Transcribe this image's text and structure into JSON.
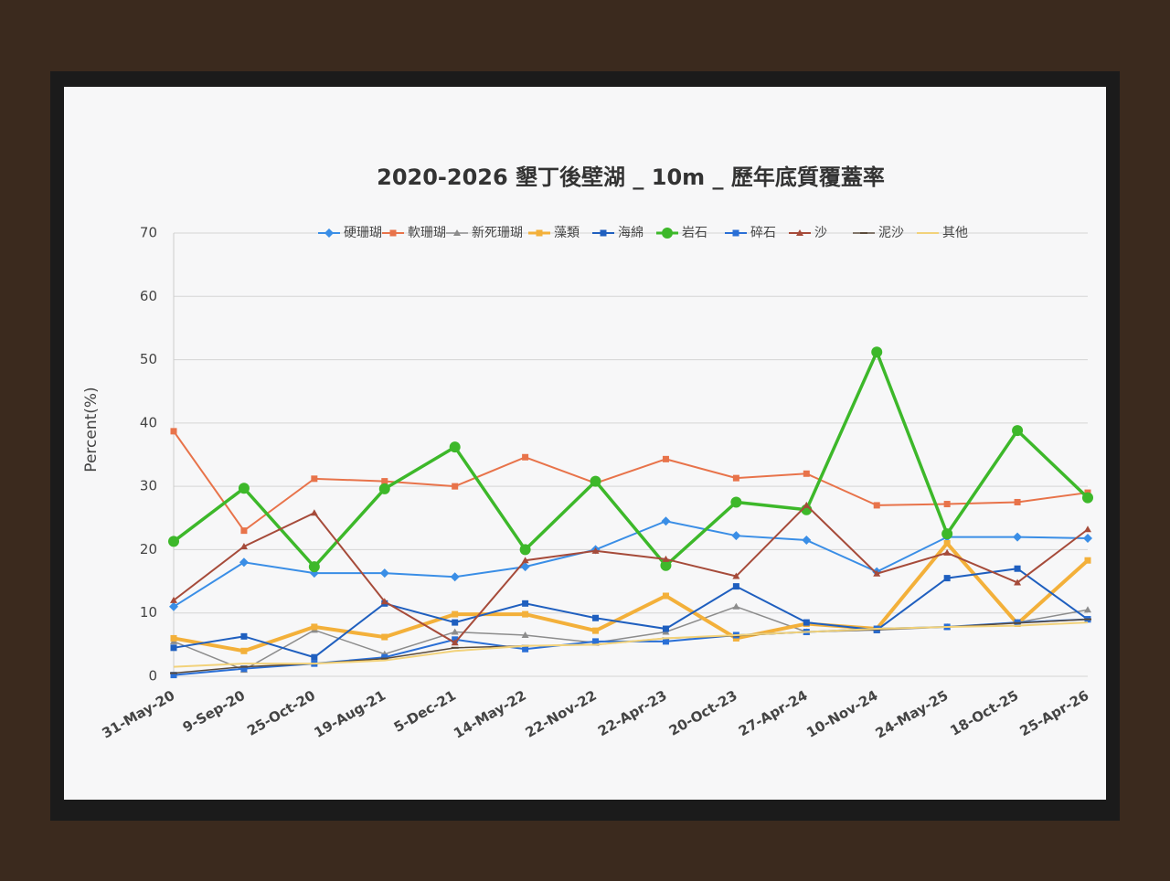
{
  "chart_data": {
    "type": "line",
    "title": "2020-2026  墾丁後壁湖 _ 10m _ 歷年底質覆蓋率",
    "y_label": "Percent(%)",
    "categories": [
      "31-May-20",
      "9-Sep-20",
      "25-Oct-20",
      "19-Aug-21",
      "5-Dec-21",
      "14-May-22",
      "22-Nov-22",
      "22-Apr-23",
      "20-Oct-23",
      "27-Apr-24",
      "10-Nov-24",
      "24-May-25",
      "18-Oct-25",
      "25-Apr-26"
    ],
    "ylim": [
      0,
      70
    ],
    "yticks": [
      0,
      10,
      20,
      30,
      40,
      50,
      60,
      70
    ],
    "grid": true,
    "legend": "top",
    "series": [
      {
        "name": "硬珊瑚",
        "color": "#3a8ee6",
        "marker": "diamond",
        "width": 2,
        "values": [
          11,
          18,
          16.3,
          16.3,
          15.7,
          17.3,
          20,
          24.5,
          22.2,
          21.5,
          16.5,
          22,
          22,
          21.8
        ]
      },
      {
        "name": "軟珊瑚",
        "color": "#e8734a",
        "marker": "square",
        "width": 2,
        "values": [
          38.7,
          23,
          31.2,
          30.8,
          30,
          34.6,
          30.5,
          34.3,
          31.3,
          32,
          27,
          27.2,
          27.5,
          29
        ]
      },
      {
        "name": "新死珊瑚",
        "color": "#8c8c8c",
        "marker": "triangle",
        "width": 1.5,
        "values": [
          5.5,
          1,
          7.3,
          3.5,
          7,
          6.5,
          5.3,
          7,
          11,
          7,
          7.3,
          7.8,
          8.5,
          10.5
        ]
      },
      {
        "name": "藻類",
        "color": "#f3b03a",
        "marker": "square",
        "width": 4,
        "values": [
          6,
          4,
          7.8,
          6.2,
          9.8,
          9.8,
          7.2,
          12.7,
          6,
          8.3,
          7.5,
          21,
          8.3,
          18.3
        ]
      },
      {
        "name": "海綿",
        "color": "#1f5fbf",
        "marker": "square",
        "width": 2,
        "values": [
          4.5,
          6.3,
          3,
          11.5,
          8.5,
          11.5,
          9.2,
          7.5,
          14.2,
          8.5,
          7.3,
          15.5,
          17,
          9
        ]
      },
      {
        "name": "岩石",
        "color": "#3db82a",
        "marker": "circle",
        "width": 3.5,
        "values": [
          21.3,
          29.7,
          17.3,
          29.6,
          36.2,
          20,
          30.8,
          17.5,
          27.5,
          26.3,
          51.2,
          22.5,
          38.8,
          28.2
        ]
      },
      {
        "name": "碎石",
        "color": "#2a6fd6",
        "marker": "square",
        "width": 2,
        "values": [
          0.2,
          1.2,
          2,
          3,
          5.8,
          4.3,
          5.5,
          5.5,
          6.5,
          7,
          7.5,
          7.8,
          8.5,
          9
        ]
      },
      {
        "name": "沙",
        "color": "#a64b3a",
        "marker": "triangle",
        "width": 2,
        "values": [
          12,
          20.5,
          25.8,
          11.8,
          5.3,
          18.3,
          19.8,
          18.5,
          15.8,
          27,
          16.2,
          19.5,
          14.8,
          23.2
        ]
      },
      {
        "name": "泥沙",
        "color": "#5a4a3a",
        "marker": "dash",
        "width": 1.5,
        "values": [
          0.5,
          1.5,
          2,
          2.8,
          4.5,
          4.8,
          5,
          6,
          6.4,
          7,
          7.4,
          7.8,
          8.4,
          9
        ]
      },
      {
        "name": "其他",
        "color": "#f2d27a",
        "marker": "none",
        "width": 2,
        "values": [
          1.5,
          2,
          2,
          2.5,
          4,
          4.8,
          5,
          6,
          6.5,
          7,
          7.5,
          7.8,
          8,
          8.5
        ]
      }
    ]
  }
}
